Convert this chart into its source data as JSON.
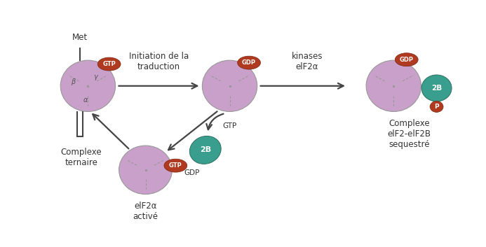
{
  "bg_color": "#ffffff",
  "purple": "#c9a0c9",
  "purple_dark": "#b888b8",
  "dark_red": "#b03a20",
  "teal": "#3a9e8e",
  "line_color": "#444444",
  "text_color": "#333333",
  "arrow_color": "#444444",
  "label_met": "Met",
  "label_gtp": "GTP",
  "label_gdp": "GDP",
  "label_2b": "2B",
  "label_p": "P",
  "label_gamma": "γ",
  "label_beta": "β",
  "label_alpha": "α",
  "label_complex_ternaire": "Complexe\nternaire",
  "label_initiation": "Initiation de la\ntraduction",
  "label_kinases": "kinases\nelF2α",
  "label_eif2a": "elF2α\nactivé",
  "label_complexe_eif": "Complexe\nelF2-elF2B\nsequestré",
  "figsize": [
    6.93,
    3.53
  ],
  "dpi": 100,
  "xlim": [
    0,
    10
  ],
  "ylim": [
    0,
    5.5
  ]
}
